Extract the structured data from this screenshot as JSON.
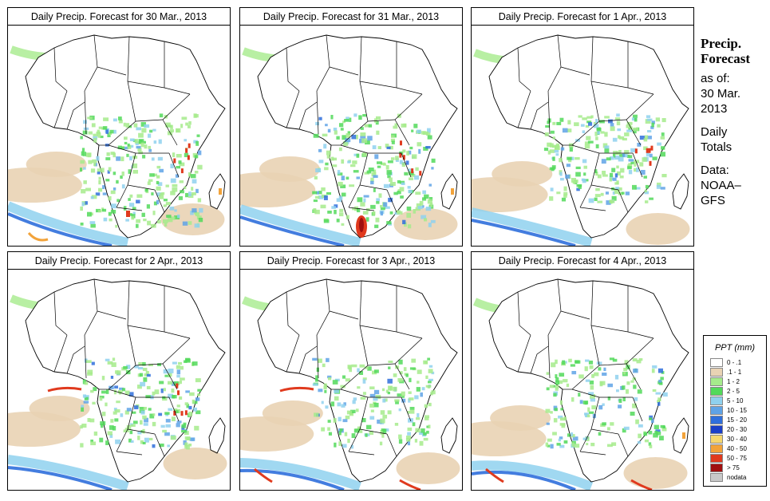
{
  "panels": [
    {
      "title": "Daily Precip. Forecast for  30 Mar., 2013",
      "heavy": [
        "s-africa-coast",
        "east-africa",
        "madagascar",
        "antarctic-band"
      ]
    },
    {
      "title": "Daily Precip. Forecast for  31 Mar., 2013",
      "heavy": [
        "south-africa-red",
        "east-africa",
        "madagascar"
      ]
    },
    {
      "title": "Daily Precip. Forecast for  1 Apr., 2013",
      "heavy": [
        "east-africa"
      ]
    },
    {
      "title": "Daily Precip. Forecast for  2 Apr., 2013",
      "heavy": [
        "atlantic-band",
        "east-africa"
      ]
    },
    {
      "title": "Daily Precip. Forecast for  3 Apr., 2013",
      "heavy": [
        "atlantic-band",
        "south-ocean"
      ]
    },
    {
      "title": "Daily Precip. Forecast for  4 Apr., 2013",
      "heavy": [
        "south-ocean",
        "madagascar"
      ]
    }
  ],
  "side": {
    "heading1": "Precip.",
    "heading2": "Forecast",
    "asof": "as of:",
    "date1": "30 Mar.",
    "date2": "2013",
    "daily1": "Daily",
    "daily2": "Totals",
    "data1": "Data:",
    "data2": "NOAA–",
    "data3": "GFS"
  },
  "legend": {
    "title": "PPT (mm)",
    "items": [
      {
        "label": "0 - .1",
        "color": "#ffffff"
      },
      {
        "label": ".1 - 1",
        "color": "#e9d3b4"
      },
      {
        "label": "1 - 2",
        "color": "#a6eb8c"
      },
      {
        "label": "2 - 5",
        "color": "#52d95a"
      },
      {
        "label": "5 - 10",
        "color": "#8fd1ee"
      },
      {
        "label": "10 - 15",
        "color": "#5fa3e6"
      },
      {
        "label": "15 - 20",
        "color": "#2f6fdc"
      },
      {
        "label": "20 - 30",
        "color": "#1a3fc8"
      },
      {
        "label": "30 - 40",
        "color": "#f5d76e"
      },
      {
        "label": "40 - 50",
        "color": "#f2a33a"
      },
      {
        "label": "50 - 75",
        "color": "#e03a1e"
      },
      {
        "label": "> 75",
        "color": "#a01010"
      },
      {
        "label": "nodata",
        "color": "#c8c8c8"
      }
    ]
  }
}
